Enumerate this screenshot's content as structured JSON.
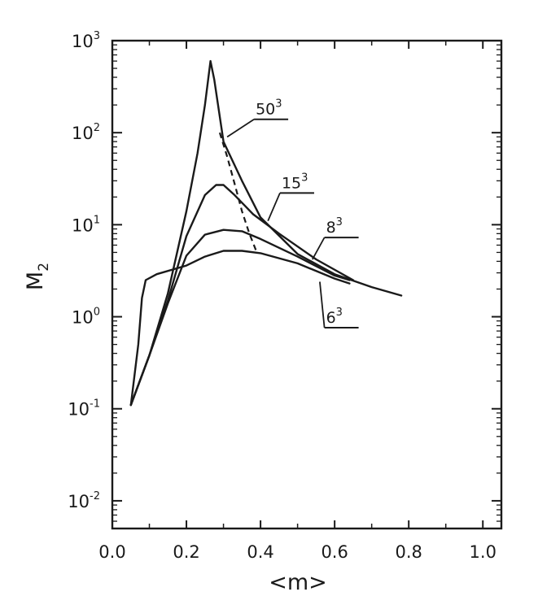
{
  "chart_data": {
    "type": "line",
    "xlabel": "<m>",
    "ylabel": "M",
    "ylabel_subscript": "2",
    "xlim": [
      0.0,
      1.05
    ],
    "ylim": [
      0.005,
      1000
    ],
    "yscale": "log",
    "grid": false,
    "x_ticks": [
      {
        "value": 0.0,
        "label": "0.0"
      },
      {
        "value": 0.2,
        "label": "0.2"
      },
      {
        "value": 0.4,
        "label": "0.4"
      },
      {
        "value": 0.6,
        "label": "0.6"
      },
      {
        "value": 0.8,
        "label": "0.8"
      },
      {
        "value": 1.0,
        "label": "1.0"
      }
    ],
    "y_ticks": [
      {
        "value": 1000,
        "base": "10",
        "exp": "3"
      },
      {
        "value": 100,
        "base": "10",
        "exp": "2"
      },
      {
        "value": 10,
        "base": "10",
        "exp": "1"
      },
      {
        "value": 1,
        "base": "10",
        "exp": "0"
      },
      {
        "value": 0.1,
        "base": "10",
        "exp": "-1"
      },
      {
        "value": 0.01,
        "base": "10",
        "exp": "-2"
      }
    ],
    "series": [
      {
        "name": "50",
        "name_sup": "3",
        "label_at": [
          0.4,
          158
        ],
        "leader_to": [
          0.31,
          90
        ],
        "x": [
          0.05,
          0.1,
          0.15,
          0.2,
          0.23,
          0.25,
          0.265,
          0.275,
          0.3,
          0.35,
          0.4,
          0.5,
          0.6,
          0.7,
          0.78
        ],
        "y": [
          0.11,
          0.38,
          1.8,
          14,
          60,
          200,
          600,
          380,
          80,
          30,
          12,
          4.8,
          2.9,
          2.1,
          1.7
        ]
      },
      {
        "name": "15",
        "name_sup": "3",
        "label_at": [
          0.47,
          25
        ],
        "leader_to": [
          0.42,
          11
        ],
        "x": [
          0.05,
          0.1,
          0.15,
          0.2,
          0.25,
          0.28,
          0.3,
          0.33,
          0.38,
          0.45,
          0.55,
          0.65
        ],
        "y": [
          0.11,
          0.38,
          1.5,
          7.5,
          21,
          27,
          27,
          21,
          13,
          8,
          4.2,
          2.5
        ]
      },
      {
        "name": "8",
        "name_sup": "3",
        "label_at": [
          0.59,
          8.2
        ],
        "leader_to": [
          0.54,
          4.2
        ],
        "x": [
          0.05,
          0.1,
          0.15,
          0.2,
          0.25,
          0.3,
          0.35,
          0.4,
          0.5,
          0.6,
          0.64
        ],
        "y": [
          0.11,
          0.38,
          1.4,
          4.6,
          7.8,
          8.8,
          8.5,
          7,
          4.5,
          2.8,
          2.5
        ]
      },
      {
        "name": "6",
        "name_sup": "3",
        "label_at": [
          0.59,
          0.86
        ],
        "leader_to": [
          0.56,
          2.4
        ],
        "x": [
          0.05,
          0.07,
          0.08,
          0.09,
          0.12,
          0.2,
          0.25,
          0.3,
          0.35,
          0.4,
          0.5,
          0.6,
          0.64
        ],
        "y": [
          0.11,
          0.5,
          1.6,
          2.5,
          2.9,
          3.6,
          4.5,
          5.2,
          5.2,
          4.9,
          3.8,
          2.6,
          2.3
        ]
      }
    ],
    "dashed_line": {
      "x": [
        0.29,
        0.31,
        0.33,
        0.35,
        0.37,
        0.39
      ],
      "y": [
        100,
        55,
        28,
        14,
        8,
        5
      ]
    }
  }
}
